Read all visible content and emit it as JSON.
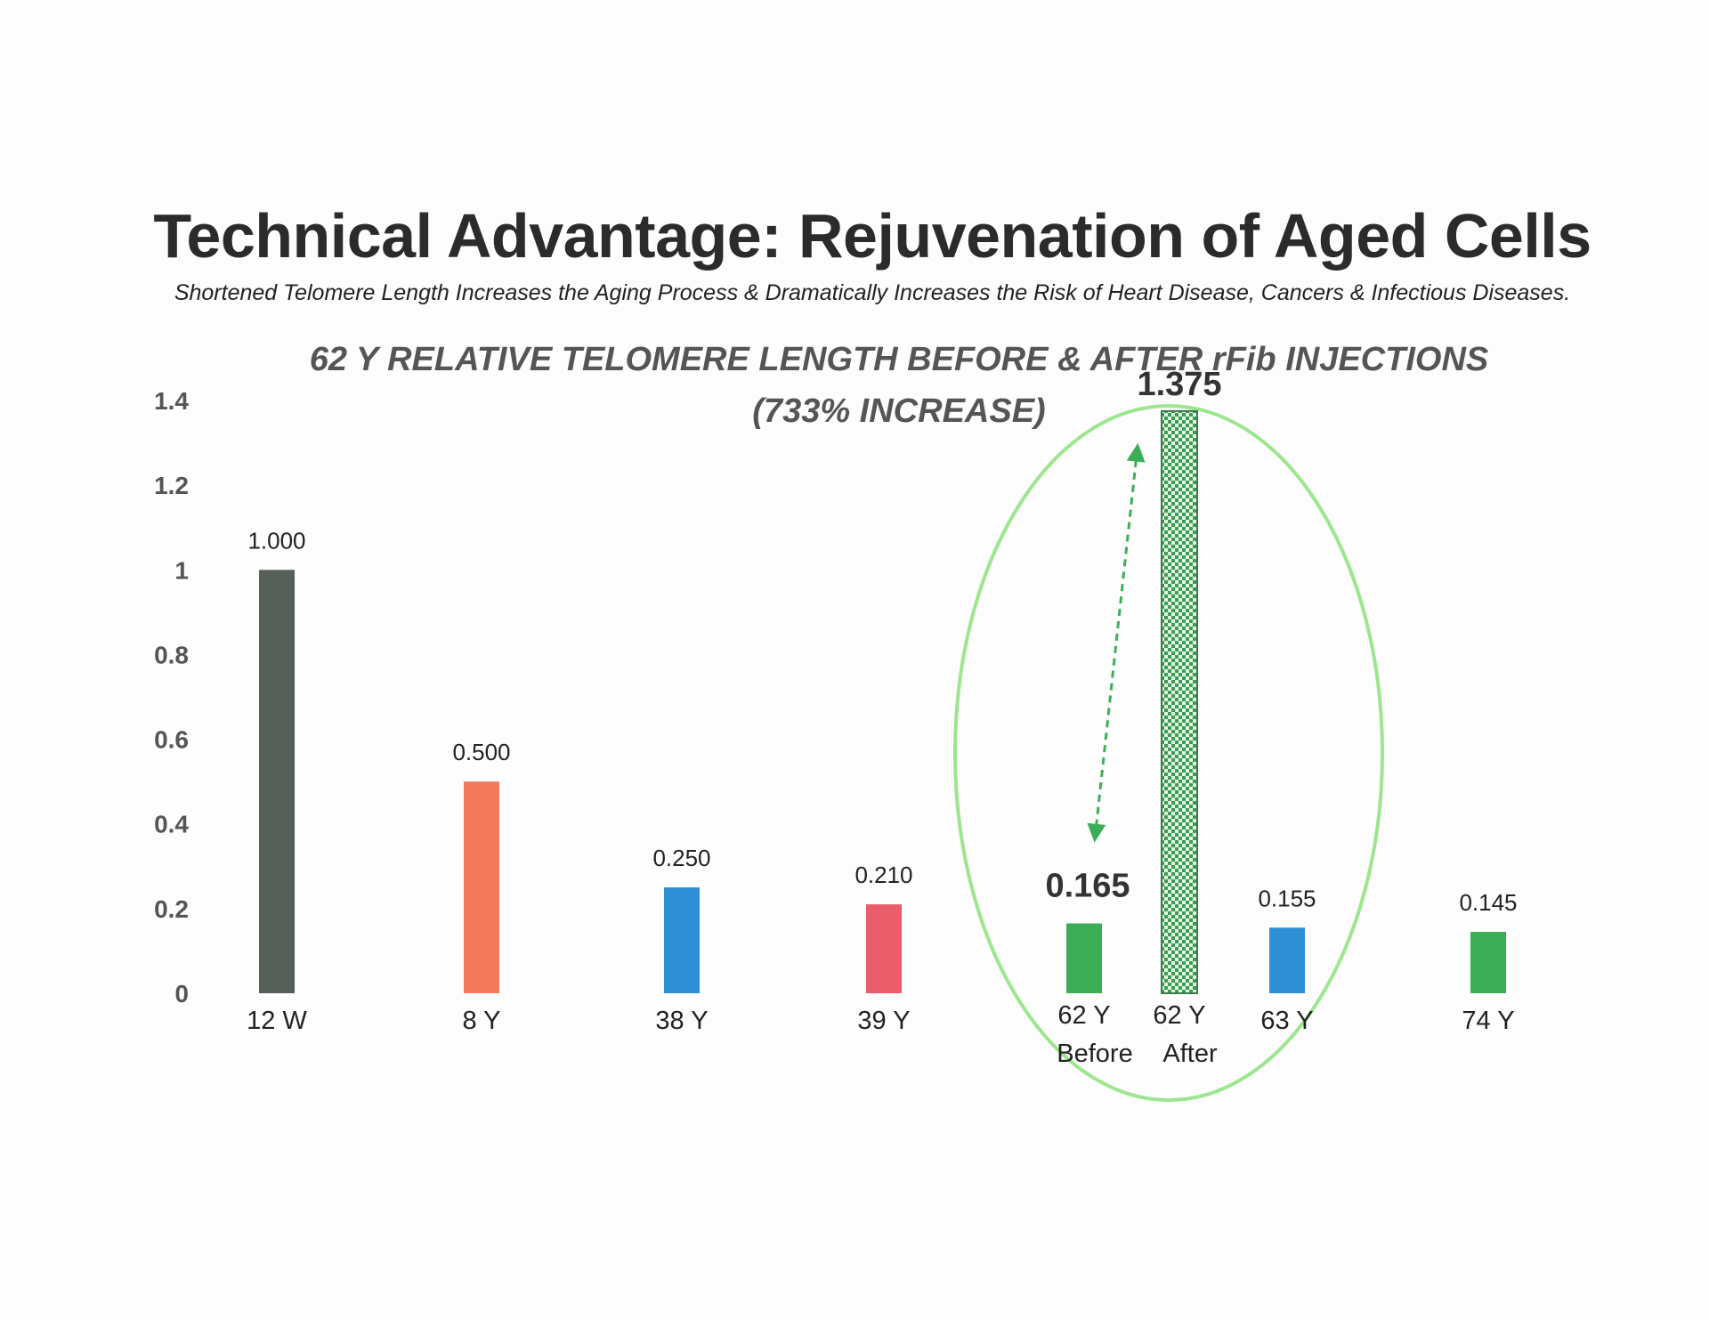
{
  "title": "Technical Advantage: Rejuvenation of Aged Cells",
  "subtitle": "Shortened Telomere Length Increases the Aging Process & Dramatically Increases the Risk of Heart Disease, Cancers & Infectious Diseases.",
  "colors": {
    "dark": "#566059",
    "orange": "#f47a5e",
    "blue": "#2f8fd6",
    "red": "#e95e6a",
    "green": "#3cae57",
    "highlight": "#9de68f",
    "checker_dark": "#3a9e52",
    "checker_light": "#e6f5e6"
  },
  "chart_data": {
    "type": "bar",
    "title_line1": "62 Y RELATIVE TELOMERE LENGTH BEFORE & AFTER rFib INJECTIONS",
    "title_line2": "(733% INCREASE)",
    "ylim": [
      0,
      1.4
    ],
    "yticks": [
      "0",
      "0.2",
      "0.4",
      "0.6",
      "0.8",
      "1",
      "1.2",
      "1.4"
    ],
    "grid": false,
    "legend": "none",
    "bars": [
      {
        "label": "12 W",
        "label2": "",
        "value": 1.0,
        "value_label": "1.000",
        "color": "#566059",
        "pattern": "solid",
        "emphasis": false
      },
      {
        "label": "8 Y",
        "label2": "",
        "value": 0.5,
        "value_label": "0.500",
        "color": "#f47a5e",
        "pattern": "solid",
        "emphasis": false
      },
      {
        "label": "38 Y",
        "label2": "",
        "value": 0.25,
        "value_label": "0.250",
        "color": "#2f8fd6",
        "pattern": "solid",
        "emphasis": false
      },
      {
        "label": "39 Y",
        "label2": "",
        "value": 0.21,
        "value_label": "0.210",
        "color": "#e95e6a",
        "pattern": "solid",
        "emphasis": false
      },
      {
        "label": "62 Y",
        "label2": "Before",
        "value": 0.165,
        "value_label": "0.165",
        "color": "#3cae57",
        "pattern": "solid",
        "emphasis": true
      },
      {
        "label": "62 Y",
        "label2": "After",
        "value": 1.375,
        "value_label": "1.375",
        "color": "#3a9e52",
        "pattern": "checker",
        "emphasis": true
      },
      {
        "label": "63 Y",
        "label2": "",
        "value": 0.155,
        "value_label": "0.155",
        "color": "#2f8fd6",
        "pattern": "solid",
        "emphasis": false
      },
      {
        "label": "74 Y",
        "label2": "",
        "value": 0.145,
        "value_label": "0.145",
        "color": "#3cae57",
        "pattern": "solid",
        "emphasis": false
      }
    ],
    "annotations": [
      "dashed double arrow from 62 Y Before to 62 Y After",
      "green ellipse highlighting 62 Y Before and After"
    ]
  }
}
